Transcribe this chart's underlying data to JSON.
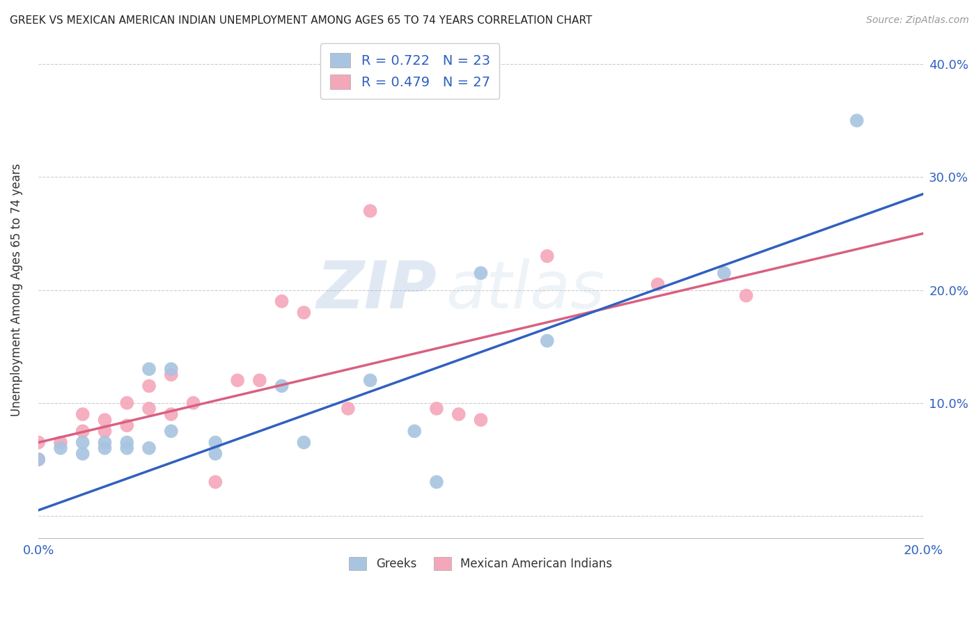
{
  "title": "GREEK VS MEXICAN AMERICAN INDIAN UNEMPLOYMENT AMONG AGES 65 TO 74 YEARS CORRELATION CHART",
  "source": "Source: ZipAtlas.com",
  "ylabel": "Unemployment Among Ages 65 to 74 years",
  "xlim": [
    0.0,
    0.2
  ],
  "ylim": [
    -0.02,
    0.42
  ],
  "xticks": [
    0.0,
    0.04,
    0.08,
    0.12,
    0.16,
    0.2
  ],
  "yticks": [
    0.0,
    0.1,
    0.2,
    0.3,
    0.4
  ],
  "greek_color": "#a8c4e0",
  "mexican_color": "#f4a7b9",
  "greek_line_color": "#3060c0",
  "mexican_line_color": "#d96080",
  "greek_R": 0.722,
  "greek_N": 23,
  "mexican_R": 0.479,
  "mexican_N": 27,
  "greek_scatter_x": [
    0.0,
    0.005,
    0.01,
    0.01,
    0.015,
    0.015,
    0.02,
    0.02,
    0.025,
    0.025,
    0.03,
    0.03,
    0.04,
    0.04,
    0.055,
    0.06,
    0.075,
    0.085,
    0.09,
    0.1,
    0.115,
    0.155,
    0.185
  ],
  "greek_scatter_y": [
    0.05,
    0.06,
    0.055,
    0.065,
    0.06,
    0.065,
    0.06,
    0.065,
    0.06,
    0.13,
    0.13,
    0.075,
    0.055,
    0.065,
    0.115,
    0.065,
    0.12,
    0.075,
    0.03,
    0.215,
    0.155,
    0.215,
    0.35
  ],
  "mexican_scatter_x": [
    0.0,
    0.0,
    0.005,
    0.01,
    0.01,
    0.015,
    0.015,
    0.02,
    0.02,
    0.025,
    0.025,
    0.03,
    0.03,
    0.035,
    0.04,
    0.045,
    0.05,
    0.055,
    0.06,
    0.07,
    0.075,
    0.09,
    0.095,
    0.1,
    0.115,
    0.14,
    0.16
  ],
  "mexican_scatter_y": [
    0.05,
    0.065,
    0.065,
    0.075,
    0.09,
    0.075,
    0.085,
    0.08,
    0.1,
    0.095,
    0.115,
    0.09,
    0.125,
    0.1,
    0.03,
    0.12,
    0.12,
    0.19,
    0.18,
    0.095,
    0.27,
    0.095,
    0.09,
    0.085,
    0.23,
    0.205,
    0.195
  ],
  "greek_trend_x": [
    0.0,
    0.2
  ],
  "greek_trend_y": [
    0.005,
    0.285
  ],
  "mexican_trend_x": [
    0.0,
    0.2
  ],
  "mexican_trend_y": [
    0.065,
    0.25
  ],
  "watermark_zip": "ZIP",
  "watermark_atlas": "atlas",
  "background_color": "#ffffff",
  "grid_color": "#cccccc",
  "legend_greek_label": "Greeks",
  "legend_mexican_label": "Mexican American Indians"
}
